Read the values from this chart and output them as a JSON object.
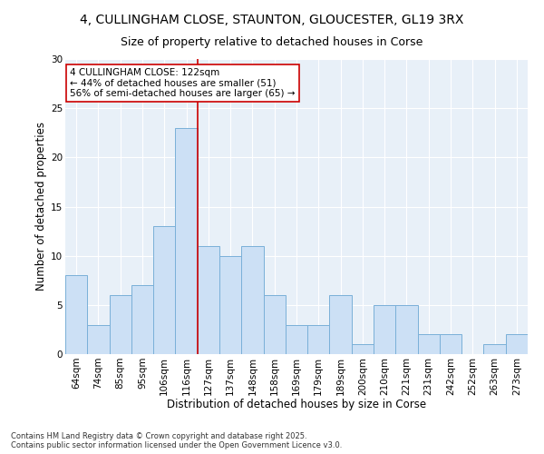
{
  "title_line1": "4, CULLINGHAM CLOSE, STAUNTON, GLOUCESTER, GL19 3RX",
  "title_line2": "Size of property relative to detached houses in Corse",
  "xlabel": "Distribution of detached houses by size in Corse",
  "ylabel": "Number of detached properties",
  "bin_labels": [
    "64sqm",
    "74sqm",
    "85sqm",
    "95sqm",
    "106sqm",
    "116sqm",
    "127sqm",
    "137sqm",
    "148sqm",
    "158sqm",
    "169sqm",
    "179sqm",
    "189sqm",
    "200sqm",
    "210sqm",
    "221sqm",
    "231sqm",
    "242sqm",
    "252sqm",
    "263sqm",
    "273sqm"
  ],
  "bar_heights": [
    8,
    3,
    6,
    7,
    13,
    23,
    11,
    10,
    11,
    6,
    3,
    3,
    6,
    1,
    5,
    5,
    2,
    2,
    0,
    1,
    2
  ],
  "bar_color": "#cce0f5",
  "bar_edge_color": "#7ab0d8",
  "vline_color": "#cc0000",
  "annotation_text": "4 CULLINGHAM CLOSE: 122sqm\n← 44% of detached houses are smaller (51)\n56% of semi-detached houses are larger (65) →",
  "annotation_box_color": "#ffffff",
  "annotation_box_edge": "#cc0000",
  "ylim": [
    0,
    30
  ],
  "yticks": [
    0,
    5,
    10,
    15,
    20,
    25,
    30
  ],
  "background_color": "#e8f0f8",
  "footnote": "Contains HM Land Registry data © Crown copyright and database right 2025.\nContains public sector information licensed under the Open Government Licence v3.0.",
  "title_fontsize": 10,
  "subtitle_fontsize": 9,
  "xlabel_fontsize": 8.5,
  "ylabel_fontsize": 8.5,
  "tick_fontsize": 7.5,
  "annot_fontsize": 7.5,
  "footnote_fontsize": 6
}
